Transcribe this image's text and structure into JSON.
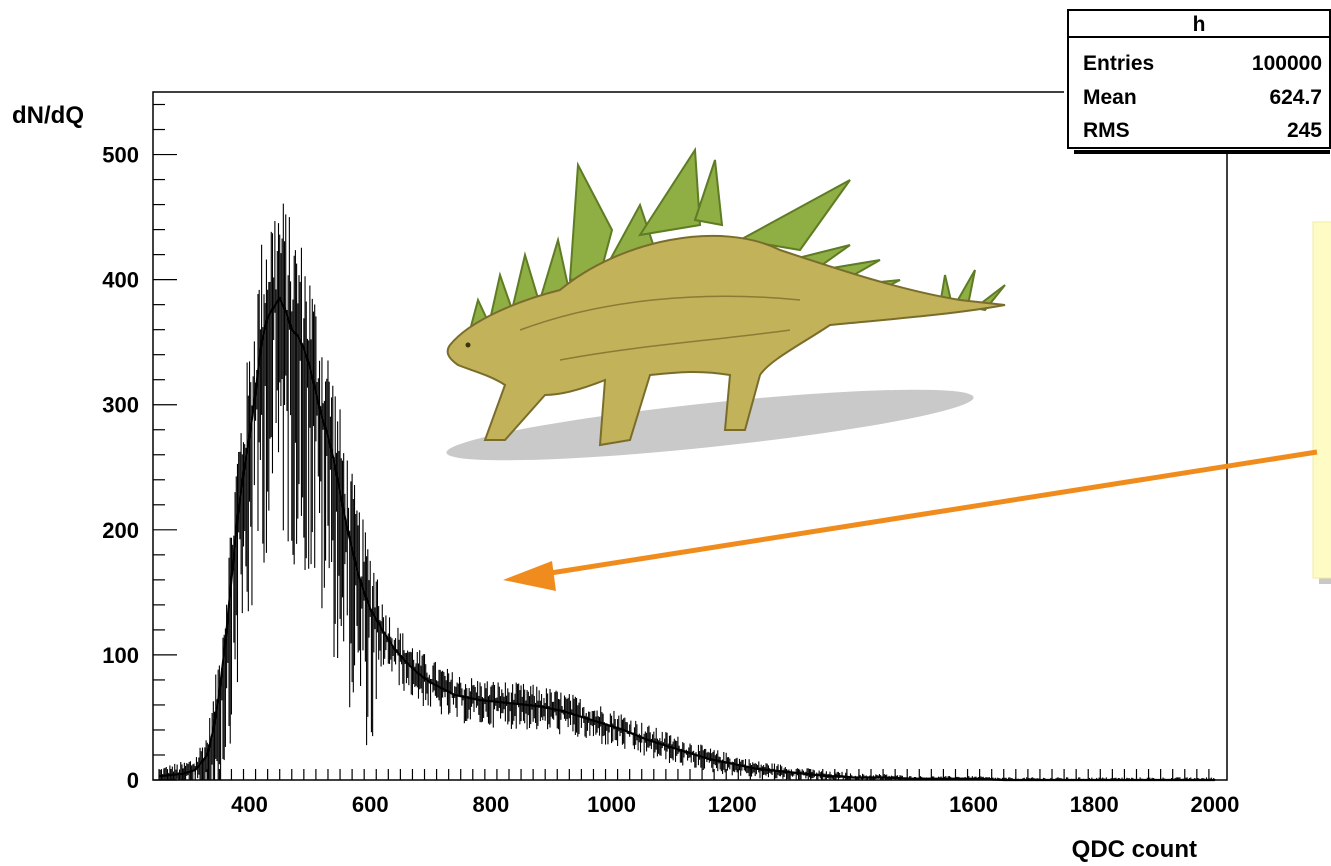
{
  "chart_data": {
    "type": "histogram",
    "xlabel": "QDC count",
    "ylabel": "dN/dQ",
    "xlim": [
      240,
      2020
    ],
    "ylim": [
      0,
      550
    ],
    "x_ticks": [
      "400",
      "600",
      "800",
      "1000",
      "1200",
      "1400",
      "1600",
      "1800",
      "2000"
    ],
    "y_ticks": [
      "0",
      "100",
      "200",
      "300",
      "400",
      "500"
    ],
    "grid": false,
    "legend": "none",
    "series_color": "#000000",
    "x": [
      250,
      270,
      290,
      310,
      330,
      340,
      350,
      360,
      370,
      380,
      390,
      400,
      410,
      420,
      430,
      440,
      450,
      460,
      470,
      480,
      490,
      500,
      510,
      520,
      530,
      540,
      550,
      560,
      570,
      580,
      590,
      600,
      620,
      640,
      660,
      680,
      700,
      720,
      740,
      760,
      780,
      800,
      820,
      840,
      860,
      880,
      900,
      920,
      940,
      960,
      980,
      1000,
      1020,
      1040,
      1060,
      1080,
      1100,
      1120,
      1140,
      1160,
      1180,
      1200,
      1220,
      1240,
      1260,
      1280,
      1300,
      1320,
      1340,
      1360,
      1380,
      1400,
      1450,
      1500,
      1550,
      1600,
      1650,
      1700,
      1750,
      1800,
      1850,
      1900,
      1950,
      2000
    ],
    "values": [
      3,
      4,
      5,
      8,
      20,
      40,
      70,
      110,
      160,
      210,
      245,
      275,
      310,
      350,
      370,
      378,
      385,
      375,
      360,
      355,
      345,
      330,
      310,
      290,
      275,
      255,
      230,
      205,
      185,
      165,
      150,
      137,
      120,
      105,
      94,
      85,
      78,
      73,
      68,
      66,
      64,
      63,
      62,
      61,
      60,
      59,
      57,
      55,
      52,
      49,
      46,
      43,
      40,
      36,
      32,
      29,
      26,
      23,
      20,
      17,
      15,
      13,
      11,
      9,
      8,
      7,
      6,
      5,
      4,
      3,
      3,
      2,
      2,
      1,
      1,
      1,
      0,
      0,
      0,
      0,
      0,
      0,
      0,
      0
    ],
    "stats": {
      "title": "h",
      "rows": [
        {
          "label": "Entries",
          "value": "100000"
        },
        {
          "label": "Mean",
          "value": "624.7"
        },
        {
          "label": "RMS",
          "value": "245"
        }
      ]
    },
    "annotation_color": "#f08c1e"
  }
}
